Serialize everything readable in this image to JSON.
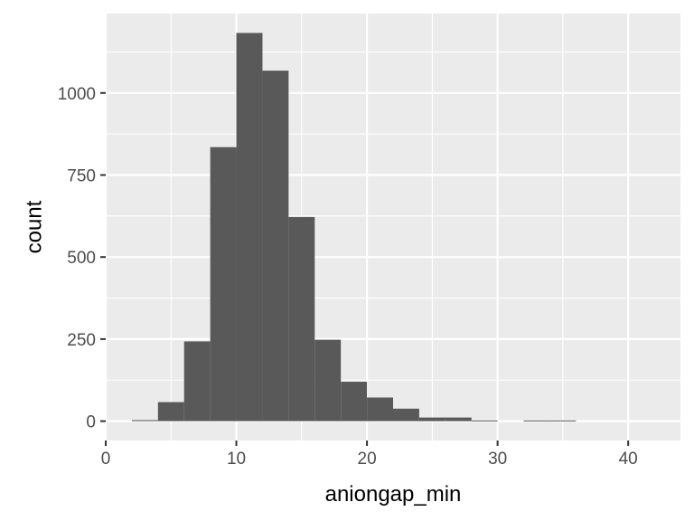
{
  "chart_data": {
    "type": "bar",
    "subtype": "histogram",
    "xlabel": "aniongap_min",
    "ylabel": "count",
    "bin_width": 2,
    "bins": [
      {
        "start": 2,
        "end": 4,
        "count": 3
      },
      {
        "start": 4,
        "end": 6,
        "count": 58
      },
      {
        "start": 6,
        "end": 8,
        "count": 243
      },
      {
        "start": 8,
        "end": 10,
        "count": 835
      },
      {
        "start": 10,
        "end": 12,
        "count": 1183
      },
      {
        "start": 12,
        "end": 14,
        "count": 1068
      },
      {
        "start": 14,
        "end": 16,
        "count": 622
      },
      {
        "start": 16,
        "end": 18,
        "count": 248
      },
      {
        "start": 18,
        "end": 20,
        "count": 120
      },
      {
        "start": 20,
        "end": 22,
        "count": 72
      },
      {
        "start": 22,
        "end": 24,
        "count": 38
      },
      {
        "start": 24,
        "end": 26,
        "count": 11
      },
      {
        "start": 26,
        "end": 28,
        "count": 11
      },
      {
        "start": 28,
        "end": 30,
        "count": 2
      },
      {
        "start": 30,
        "end": 32,
        "count": 0
      },
      {
        "start": 32,
        "end": 34,
        "count": 2
      },
      {
        "start": 34,
        "end": 36,
        "count": 2
      },
      {
        "start": 36,
        "end": 38,
        "count": 0
      },
      {
        "start": 38,
        "end": 40,
        "count": 0
      },
      {
        "start": 40,
        "end": 42,
        "count": 0
      }
    ],
    "xlim": [
      0,
      44
    ],
    "ylim": [
      -59,
      1242
    ],
    "x_ticks": [
      0,
      10,
      20,
      30,
      40
    ],
    "x_tick_labels": [
      "0",
      "10",
      "20",
      "30",
      "40"
    ],
    "y_ticks": [
      0,
      250,
      500,
      750,
      1000
    ],
    "y_tick_labels": [
      "0",
      "250",
      "500",
      "750",
      "1000"
    ],
    "grid": true,
    "colors": {
      "panel_background": "#ebebeb",
      "grid": "#ffffff",
      "bar_fill": "#595959",
      "tick_text": "#4d4d4d",
      "axis_title": "#000000"
    }
  }
}
